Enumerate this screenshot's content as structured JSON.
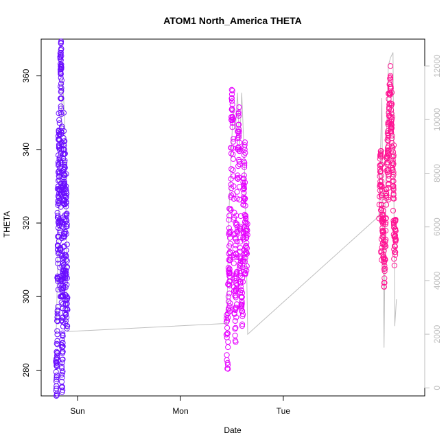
{
  "chart_data": {
    "type": "scatter",
    "title": "ATOM1 North_America THETA",
    "xlabel": "Date",
    "ylabel": "THETA",
    "x_unit": "hours",
    "xlim": [
      -2.5,
      87
    ],
    "ylim": [
      273,
      370
    ],
    "y2lim": [
      -300,
      13000
    ],
    "x_ticks": [
      {
        "value": 6,
        "label": "Sun"
      },
      {
        "value": 30,
        "label": "Mon"
      },
      {
        "value": 54,
        "label": "Tue"
      }
    ],
    "y_ticks": [
      280,
      300,
      320,
      340,
      360
    ],
    "y2_ticks": [
      0,
      2000,
      4000,
      6000,
      8000,
      10000,
      12000
    ],
    "grid": false,
    "point_style": "open-circle",
    "colors": {
      "early": "#6A0DFF",
      "middle": "#E600FF",
      "late": "#FF1493",
      "secondary_line": "#bebebe",
      "axis": "#000000"
    },
    "series": [
      {
        "color": "#6A0DFF",
        "x_range": [
          0.9,
          3.7
        ],
        "points": [
          [
            1.0,
            277
          ],
          [
            1.1,
            278
          ],
          [
            1.2,
            284
          ],
          [
            1.3,
            296
          ],
          [
            1.4,
            310
          ],
          [
            1.5,
            330
          ],
          [
            1.6,
            345
          ],
          [
            1.7,
            348
          ],
          [
            1.8,
            340
          ],
          [
            1.9,
            318
          ],
          [
            2.0,
            300
          ],
          [
            2.0,
            365
          ],
          [
            2.1,
            367
          ],
          [
            2.1,
            362
          ],
          [
            2.2,
            356
          ],
          [
            2.2,
            340
          ],
          [
            2.3,
            320
          ],
          [
            2.3,
            300
          ],
          [
            2.4,
            285
          ],
          [
            2.4,
            278
          ],
          [
            2.5,
            290
          ],
          [
            2.6,
            310
          ],
          [
            2.7,
            330
          ],
          [
            2.8,
            345
          ],
          [
            2.9,
            340
          ],
          [
            3.0,
            325
          ],
          [
            3.1,
            305
          ],
          [
            3.2,
            295
          ],
          [
            3.3,
            310
          ],
          [
            3.4,
            322
          ],
          [
            3.5,
            300
          ],
          [
            3.6,
            292
          ],
          [
            1.6,
            312
          ],
          [
            2.6,
            298
          ],
          [
            3.0,
            337
          ],
          [
            1.4,
            322
          ],
          [
            2.8,
            305
          ],
          [
            3.3,
            330
          ]
        ]
      },
      {
        "color": "#E600FF",
        "x_range": [
          40.7,
          45.7
        ],
        "points": [
          [
            40.8,
            295
          ],
          [
            41.0,
            282
          ],
          [
            41.2,
            300
          ],
          [
            41.4,
            322
          ],
          [
            41.6,
            310
          ],
          [
            41.8,
            332
          ],
          [
            42.0,
            354
          ],
          [
            42.2,
            348
          ],
          [
            42.4,
            330
          ],
          [
            42.6,
            305
          ],
          [
            42.8,
            288
          ],
          [
            43.0,
            297
          ],
          [
            43.2,
            315
          ],
          [
            43.4,
            340
          ],
          [
            43.6,
            350
          ],
          [
            43.8,
            336
          ],
          [
            44.0,
            318
          ],
          [
            44.2,
            300
          ],
          [
            44.4,
            292
          ],
          [
            44.6,
            310
          ],
          [
            44.8,
            330
          ],
          [
            45.0,
            340
          ],
          [
            45.2,
            322
          ],
          [
            45.4,
            312
          ],
          [
            45.6,
            318
          ],
          [
            41.5,
            296
          ],
          [
            42.9,
            320
          ],
          [
            43.9,
            304
          ],
          [
            44.7,
            327
          ],
          [
            45.1,
            306
          ]
        ]
      },
      {
        "color": "#FF1493",
        "x_range": [
          76.3,
          81.3
        ],
        "points": [
          [
            76.4,
            325
          ],
          [
            76.6,
            334
          ],
          [
            76.8,
            338
          ],
          [
            77.0,
            330
          ],
          [
            77.2,
            318
          ],
          [
            77.4,
            310
          ],
          [
            77.6,
            305
          ],
          [
            77.8,
            315
          ],
          [
            78.0,
            328
          ],
          [
            78.2,
            336
          ],
          [
            78.4,
            345
          ],
          [
            78.6,
            350
          ],
          [
            78.8,
            355
          ],
          [
            79.0,
            360
          ],
          [
            79.2,
            352
          ],
          [
            79.4,
            340
          ],
          [
            79.6,
            330
          ],
          [
            79.8,
            320
          ],
          [
            80.0,
            312
          ],
          [
            80.2,
            315
          ],
          [
            77.3,
            322
          ],
          [
            78.5,
            327
          ],
          [
            79.1,
            346
          ],
          [
            79.7,
            338
          ],
          [
            76.9,
            312
          ],
          [
            80.1,
            318
          ]
        ]
      }
    ],
    "secondary_series": [
      {
        "color": "#bebebe",
        "points": [
          [
            1.0,
            2000
          ],
          [
            1.5,
            6000
          ],
          [
            2.0,
            9000
          ],
          [
            2.5,
            11500
          ],
          [
            3.0,
            10000
          ],
          [
            3.3,
            7000
          ],
          [
            3.6,
            2100
          ],
          [
            40.8,
            2400
          ],
          [
            41.3,
            6500
          ],
          [
            41.8,
            8500
          ],
          [
            42.3,
            10500
          ],
          [
            42.8,
            9500
          ],
          [
            43.3,
            11000
          ],
          [
            43.8,
            9000
          ],
          [
            44.3,
            11000
          ],
          [
            44.8,
            9000
          ],
          [
            45.3,
            6000
          ],
          [
            45.7,
            2000
          ],
          [
            76.3,
            6400
          ],
          [
            77.0,
            10800
          ],
          [
            77.5,
            1500
          ],
          [
            78.0,
            9000
          ],
          [
            78.5,
            12000
          ],
          [
            79.0,
            12300
          ],
          [
            79.6,
            12500
          ],
          [
            80.0,
            2300
          ],
          [
            80.4,
            3300
          ]
        ]
      }
    ]
  }
}
